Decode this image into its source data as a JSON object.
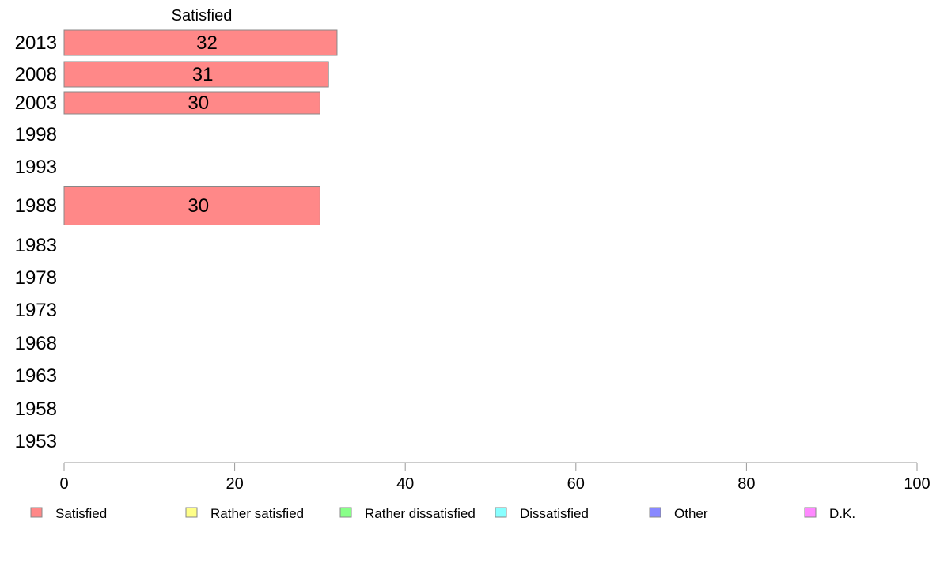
{
  "chart_data": {
    "type": "bar",
    "orientation": "horizontal",
    "title": "",
    "xlabel": "",
    "ylabel": "",
    "xlim": [
      0,
      100
    ],
    "x_ticks": [
      0,
      20,
      40,
      60,
      80,
      100
    ],
    "grid": false,
    "categories": [
      "2013",
      "2008",
      "2003",
      "1998",
      "1993",
      "1988",
      "1983",
      "1978",
      "1973",
      "1968",
      "1963",
      "1958",
      "1953"
    ],
    "series": [
      {
        "name": "Satisfied",
        "color": "#ff8888",
        "values": [
          32,
          31,
          30,
          null,
          null,
          30,
          null,
          null,
          null,
          null,
          null,
          null,
          null
        ],
        "bar_labels": [
          "32",
          "31",
          "30",
          null,
          null,
          "30",
          null,
          null,
          null,
          null,
          null,
          null,
          null
        ]
      }
    ],
    "visible_series_header": "Satisfied",
    "legend": {
      "placement": "bottom",
      "entries": [
        {
          "label": "Satisfied",
          "color": "#ff8888"
        },
        {
          "label": "Rather satisfied",
          "color": "#ffff88"
        },
        {
          "label": "Rather dissatisfied",
          "color": "#88ff88"
        },
        {
          "label": "Dissatisfied",
          "color": "#88ffff"
        },
        {
          "label": "Other",
          "color": "#8888ff"
        },
        {
          "label": "D.K.",
          "color": "#ff88ff"
        }
      ]
    }
  }
}
